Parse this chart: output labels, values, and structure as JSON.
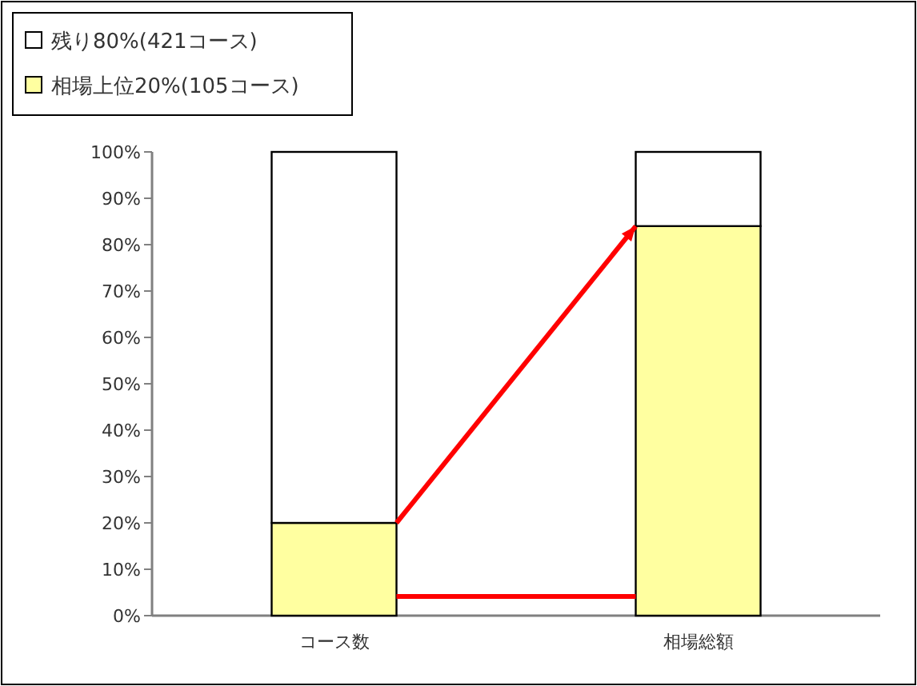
{
  "chart_data": {
    "type": "bar",
    "stacked": true,
    "legend": "top left",
    "categories": [
      "コース数",
      "相場総額"
    ],
    "series": [
      {
        "name": "相場上位20%(105コース)",
        "color": "#ffffa0",
        "values": [
          20,
          84
        ]
      },
      {
        "name": "残り80%(421コース)",
        "color": "#ffffff",
        "values": [
          80,
          16
        ]
      }
    ],
    "ylim": [
      0,
      100
    ],
    "yticks": [
      {
        "value": 0,
        "label": "0%"
      },
      {
        "value": 10,
        "label": "10%"
      },
      {
        "value": 20,
        "label": "20%"
      },
      {
        "value": 30,
        "label": "30%"
      },
      {
        "value": 40,
        "label": "40%"
      },
      {
        "value": 50,
        "label": "50%"
      },
      {
        "value": 60,
        "label": "60%"
      },
      {
        "value": 70,
        "label": "70%"
      },
      {
        "value": 80,
        "label": "80%"
      },
      {
        "value": 90,
        "label": "90%"
      },
      {
        "value": 100,
        "label": "100%"
      }
    ]
  }
}
